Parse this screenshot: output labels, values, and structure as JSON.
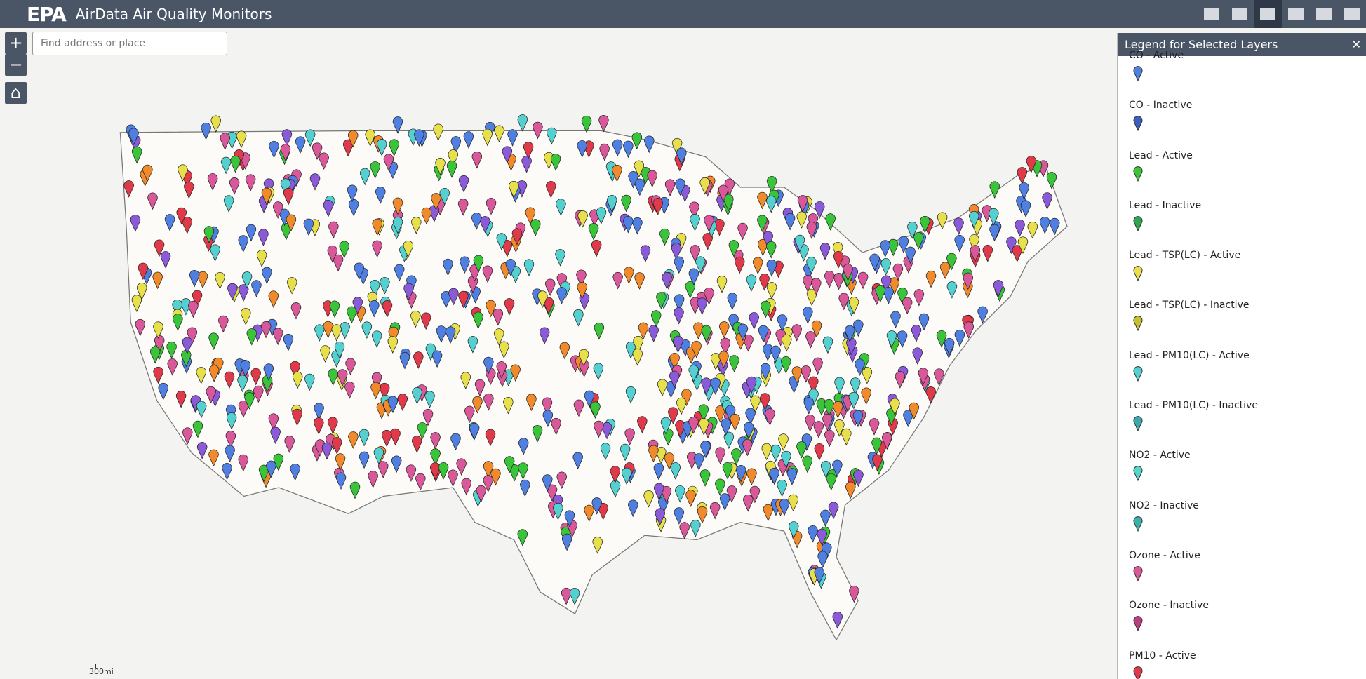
{
  "header": {
    "logo": "EPA",
    "title": "AirData Air Quality Monitors"
  },
  "search": {
    "placeholder": "Find address or place"
  },
  "legend": {
    "title": "Legend for Selected Layers",
    "items": [
      "CO - Active",
      "CO - Inactive",
      "Lead - Active",
      "Lead - Inactive",
      "Lead - TSP(LC) - Active",
      "Lead - TSP(LC) - Inactive",
      "Lead - PM10(LC) - Active",
      "Lead - PM10(LC) - Inactive",
      "NO2 - Active",
      "NO2 - Inactive",
      "Ozone - Active",
      "Ozone - Inactive",
      "PM10 - Active"
    ]
  },
  "map": {
    "scale_label": "300mi"
  }
}
